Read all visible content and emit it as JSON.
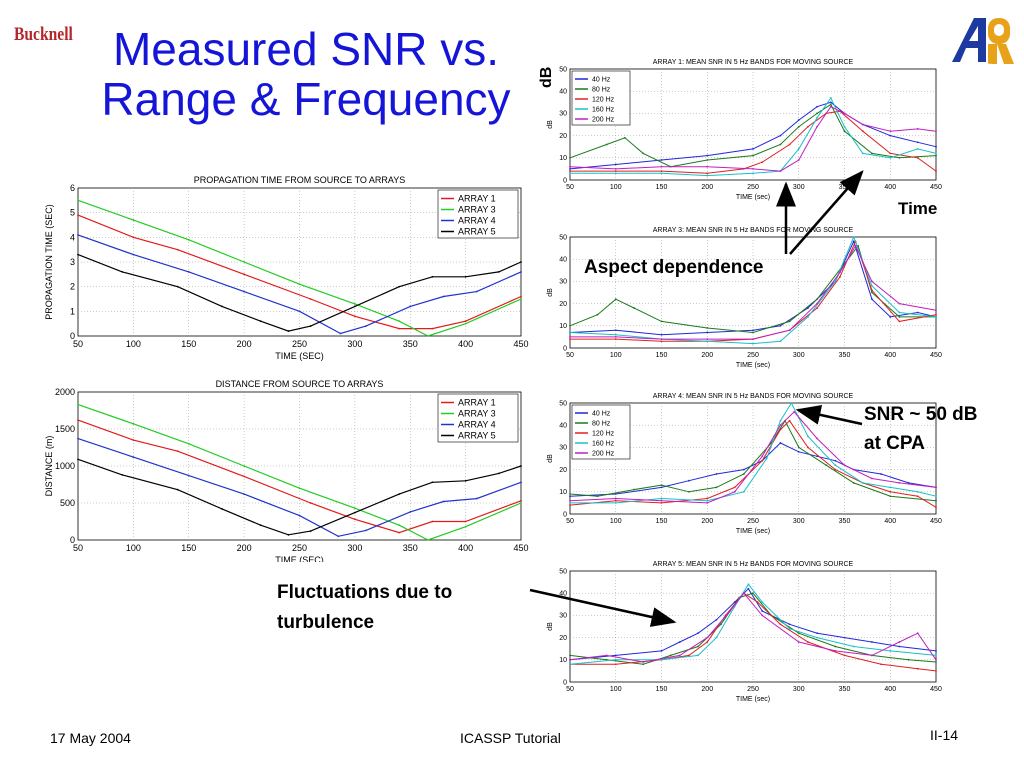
{
  "header": {
    "logo_text": "Bucknell",
    "title_line1": "Measured SNR vs.",
    "title_line2": "Range & Frequency",
    "arl_logo": "ARL"
  },
  "footer": {
    "date": "17 May 2004",
    "center": "ICASSP Tutorial",
    "page": "II-14"
  },
  "annotations": {
    "db": "dB",
    "time": "Time",
    "aspect": "Aspect dependence",
    "snr_line1": "SNR ~ 50 dB",
    "snr_line2": "at CPA",
    "fluct_line1": "Fluctuations due to",
    "fluct_line2": "turbulence"
  },
  "colors": {
    "title": "#1515d8",
    "logo": "#b5262b",
    "array1": "#e31a1c",
    "array3": "#22cc22",
    "array4": "#2233cc",
    "array5": "#000000",
    "f40": "#1f28d8",
    "f80": "#1a7a1a",
    "f120": "#e02020",
    "f160": "#19c0c8",
    "f200": "#c01fc0"
  },
  "chart_data": [
    {
      "type": "line",
      "title": "PROPAGATION TIME FROM SOURCE TO ARRAYS",
      "xlabel": "TIME (SEC)",
      "ylabel": "PROPAGATION TIME (SEC)",
      "xlim": [
        50,
        450
      ],
      "ylim": [
        0,
        6
      ],
      "xticks": [
        50,
        100,
        150,
        200,
        250,
        300,
        350,
        400,
        450
      ],
      "yticks": [
        0,
        1,
        2,
        3,
        4,
        5,
        6
      ],
      "grid": true,
      "legend": "top-right",
      "series": [
        {
          "name": "ARRAY 1",
          "color": "#e31a1c",
          "x": [
            50,
            100,
            140,
            200,
            260,
            300,
            340,
            370,
            400,
            450
          ],
          "y": [
            4.9,
            4.0,
            3.5,
            2.5,
            1.5,
            0.8,
            0.3,
            0.3,
            0.6,
            1.6
          ]
        },
        {
          "name": "ARRAY 3",
          "color": "#22cc22",
          "x": [
            50,
            100,
            150,
            200,
            250,
            300,
            340,
            366,
            400,
            450
          ],
          "y": [
            5.5,
            4.7,
            3.9,
            3.0,
            2.1,
            1.3,
            0.6,
            0.0,
            0.5,
            1.5
          ]
        },
        {
          "name": "ARRAY 4",
          "color": "#2233cc",
          "x": [
            50,
            100,
            150,
            200,
            250,
            287,
            310,
            350,
            380,
            410,
            450
          ],
          "y": [
            4.1,
            3.3,
            2.6,
            1.8,
            1.0,
            0.1,
            0.4,
            1.2,
            1.6,
            1.8,
            2.6
          ]
        },
        {
          "name": "ARRAY 5",
          "color": "#000000",
          "x": [
            50,
            90,
            140,
            180,
            215,
            240,
            260,
            300,
            340,
            370,
            400,
            430,
            450
          ],
          "y": [
            3.3,
            2.6,
            2.0,
            1.2,
            0.6,
            0.2,
            0.4,
            1.2,
            2.0,
            2.4,
            2.4,
            2.6,
            3.0
          ]
        }
      ]
    },
    {
      "type": "line",
      "title": "DISTANCE FROM SOURCE TO ARRAYS",
      "xlabel": "TIME (SEC)",
      "ylabel": "DISTANCE (m)",
      "xlim": [
        50,
        450
      ],
      "ylim": [
        0,
        2000
      ],
      "xticks": [
        50,
        100,
        150,
        200,
        250,
        300,
        350,
        400,
        450
      ],
      "yticks": [
        0,
        500,
        1000,
        1500,
        2000
      ],
      "grid": true,
      "legend": "top-right",
      "series": [
        {
          "name": "ARRAY 1",
          "color": "#e31a1c",
          "x": [
            50,
            100,
            140,
            200,
            260,
            300,
            340,
            370,
            400,
            450
          ],
          "y": [
            1620,
            1350,
            1200,
            860,
            500,
            280,
            100,
            250,
            250,
            530
          ]
        },
        {
          "name": "ARRAY 3",
          "color": "#22cc22",
          "x": [
            50,
            100,
            150,
            200,
            250,
            300,
            340,
            366,
            400,
            450
          ],
          "y": [
            1830,
            1570,
            1300,
            1000,
            700,
            430,
            200,
            0,
            180,
            500
          ]
        },
        {
          "name": "ARRAY 4",
          "color": "#2233cc",
          "x": [
            50,
            100,
            150,
            200,
            250,
            285,
            310,
            350,
            380,
            410,
            450
          ],
          "y": [
            1370,
            1120,
            870,
            620,
            330,
            50,
            130,
            380,
            520,
            560,
            780
          ]
        },
        {
          "name": "ARRAY 5",
          "color": "#000000",
          "x": [
            50,
            90,
            140,
            180,
            215,
            240,
            260,
            300,
            340,
            370,
            400,
            430,
            450
          ],
          "y": [
            1090,
            880,
            680,
            420,
            200,
            70,
            120,
            370,
            620,
            780,
            800,
            900,
            1000
          ]
        }
      ]
    },
    {
      "type": "line",
      "title": "ARRAY 1: MEAN SNR IN 5 Hz BANDS FOR MOVING SOURCE",
      "xlabel": "TIME (sec)",
      "ylabel": "dB",
      "xlim": [
        50,
        450
      ],
      "ylim": [
        0,
        50
      ],
      "xticks": [
        50,
        100,
        150,
        200,
        250,
        300,
        350,
        400,
        450
      ],
      "yticks": [
        0,
        10,
        20,
        30,
        40,
        50
      ],
      "grid": true,
      "legend": "top-left",
      "series": [
        {
          "name": "40 Hz",
          "color": "#1f28d8",
          "x": [
            50,
            100,
            150,
            200,
            250,
            280,
            300,
            320,
            335,
            350,
            370,
            400,
            430,
            450
          ],
          "y": [
            5,
            7,
            9,
            11,
            14,
            20,
            27,
            33,
            35,
            30,
            25,
            20,
            17,
            15
          ]
        },
        {
          "name": "80 Hz",
          "color": "#1a7a1a",
          "x": [
            50,
            90,
            110,
            130,
            160,
            200,
            250,
            280,
            300,
            320,
            335,
            350,
            380,
            410,
            450
          ],
          "y": [
            10,
            16,
            19,
            12,
            6,
            9,
            11,
            16,
            24,
            30,
            34,
            22,
            12,
            10,
            11
          ]
        },
        {
          "name": "120 Hz",
          "color": "#e02020",
          "x": [
            50,
            100,
            150,
            200,
            240,
            260,
            290,
            310,
            330,
            345,
            370,
            400,
            430,
            450
          ],
          "y": [
            4,
            4,
            4,
            3,
            5,
            8,
            16,
            24,
            30,
            31,
            22,
            12,
            10,
            4
          ]
        },
        {
          "name": "160 Hz",
          "color": "#19c0c8",
          "x": [
            50,
            100,
            150,
            200,
            250,
            280,
            300,
            320,
            335,
            350,
            370,
            400,
            430,
            450
          ],
          "y": [
            3,
            3,
            3,
            2,
            3,
            4,
            14,
            28,
            37,
            24,
            12,
            10,
            14,
            12
          ]
        },
        {
          "name": "200 Hz",
          "color": "#c01fc0",
          "x": [
            50,
            100,
            150,
            200,
            250,
            280,
            300,
            320,
            335,
            350,
            370,
            400,
            430,
            450
          ],
          "y": [
            6,
            5,
            6,
            6,
            5,
            4,
            9,
            24,
            33,
            30,
            25,
            22,
            23,
            22
          ]
        }
      ]
    },
    {
      "type": "line",
      "title": "ARRAY 3: MEAN SNR IN 5 Hz BANDS FOR MOVING SOURCE",
      "xlabel": "TIME (sec)",
      "ylabel": "dB",
      "xlim": [
        50,
        450
      ],
      "ylim": [
        0,
        50
      ],
      "xticks": [
        50,
        100,
        150,
        200,
        250,
        300,
        350,
        400,
        450
      ],
      "yticks": [
        0,
        10,
        20,
        30,
        40,
        50
      ],
      "grid": true,
      "legend": "none",
      "series": [
        {
          "name": "40 Hz",
          "color": "#1f28d8",
          "x": [
            50,
            100,
            150,
            200,
            250,
            280,
            310,
            340,
            360,
            380,
            400,
            430,
            450
          ],
          "y": [
            7,
            8,
            6,
            7,
            8,
            10,
            18,
            30,
            48,
            22,
            14,
            16,
            14
          ]
        },
        {
          "name": "80 Hz",
          "color": "#1a7a1a",
          "x": [
            50,
            80,
            100,
            120,
            150,
            200,
            250,
            290,
            320,
            350,
            365,
            380,
            410,
            450
          ],
          "y": [
            10,
            15,
            22,
            18,
            12,
            9,
            7,
            12,
            22,
            38,
            46,
            25,
            14,
            14
          ]
        },
        {
          "name": "120 Hz",
          "color": "#e02020",
          "x": [
            50,
            100,
            150,
            200,
            250,
            290,
            320,
            345,
            362,
            380,
            410,
            450
          ],
          "y": [
            4,
            4,
            3,
            3,
            4,
            8,
            18,
            32,
            48,
            26,
            12,
            15
          ]
        },
        {
          "name": "160 Hz",
          "color": "#19c0c8",
          "x": [
            50,
            100,
            150,
            200,
            250,
            280,
            310,
            340,
            360,
            380,
            410,
            450
          ],
          "y": [
            7,
            6,
            4,
            3,
            2,
            3,
            14,
            30,
            50,
            28,
            16,
            14
          ]
        },
        {
          "name": "200 Hz",
          "color": "#c01fc0",
          "x": [
            50,
            100,
            150,
            200,
            250,
            290,
            320,
            345,
            362,
            380,
            410,
            450
          ],
          "y": [
            5,
            5,
            4,
            4,
            4,
            8,
            20,
            34,
            46,
            30,
            20,
            17
          ]
        }
      ]
    },
    {
      "type": "line",
      "title": "ARRAY 4: MEAN SNR IN 5 Hz BANDS FOR MOVING SOURCE",
      "xlabel": "TIME (sec)",
      "ylabel": "dB",
      "xlim": [
        50,
        450
      ],
      "ylim": [
        0,
        50
      ],
      "xticks": [
        50,
        100,
        150,
        200,
        250,
        300,
        350,
        400,
        450
      ],
      "yticks": [
        0,
        10,
        20,
        30,
        40,
        50
      ],
      "grid": true,
      "legend": "top-left",
      "series": [
        {
          "name": "40 Hz",
          "color": "#1f28d8",
          "x": [
            50,
            100,
            150,
            180,
            210,
            240,
            260,
            280,
            300,
            320,
            340,
            360,
            390,
            420,
            450
          ],
          "y": [
            8,
            9,
            12,
            15,
            18,
            20,
            24,
            32,
            28,
            26,
            24,
            20,
            18,
            14,
            12
          ]
        },
        {
          "name": "80 Hz",
          "color": "#1a7a1a",
          "x": [
            50,
            80,
            120,
            150,
            180,
            210,
            240,
            270,
            285,
            300,
            330,
            360,
            400,
            450
          ],
          "y": [
            9,
            8,
            11,
            13,
            10,
            12,
            18,
            32,
            42,
            30,
            22,
            14,
            8,
            6
          ]
        },
        {
          "name": "120 Hz",
          "color": "#e02020",
          "x": [
            50,
            100,
            150,
            200,
            230,
            260,
            280,
            290,
            310,
            340,
            370,
            400,
            430,
            450
          ],
          "y": [
            4,
            6,
            5,
            7,
            12,
            24,
            38,
            42,
            30,
            20,
            14,
            10,
            8,
            3
          ]
        },
        {
          "name": "160 Hz",
          "color": "#19c0c8",
          "x": [
            50,
            100,
            150,
            200,
            240,
            265,
            280,
            292,
            310,
            340,
            370,
            400,
            430,
            450
          ],
          "y": [
            5,
            5,
            7,
            6,
            10,
            25,
            42,
            50,
            35,
            22,
            14,
            12,
            10,
            8
          ]
        },
        {
          "name": "200 Hz",
          "color": "#c01fc0",
          "x": [
            50,
            100,
            150,
            200,
            230,
            260,
            280,
            295,
            320,
            350,
            380,
            410,
            450
          ],
          "y": [
            6,
            7,
            6,
            5,
            10,
            26,
            40,
            46,
            34,
            22,
            16,
            14,
            12
          ]
        }
      ]
    },
    {
      "type": "line",
      "title": "ARRAY 5: MEAN SNR IN 5 Hz BANDS FOR MOVING SOURCE",
      "xlabel": "TIME (sec)",
      "ylabel": "dB",
      "xlim": [
        50,
        450
      ],
      "ylim": [
        0,
        50
      ],
      "xticks": [
        50,
        100,
        150,
        200,
        250,
        300,
        350,
        400,
        450
      ],
      "yticks": [
        0,
        10,
        20,
        30,
        40,
        50
      ],
      "grid": true,
      "legend": "none",
      "series": [
        {
          "name": "40 Hz",
          "color": "#1f28d8",
          "x": [
            50,
            100,
            150,
            170,
            190,
            210,
            230,
            245,
            260,
            290,
            320,
            350,
            380,
            410,
            450
          ],
          "y": [
            10,
            12,
            14,
            18,
            22,
            28,
            36,
            42,
            32,
            26,
            22,
            20,
            18,
            16,
            14
          ]
        },
        {
          "name": "80 Hz",
          "color": "#1a7a1a",
          "x": [
            50,
            90,
            130,
            160,
            190,
            215,
            235,
            250,
            270,
            300,
            340,
            380,
            420,
            450
          ],
          "y": [
            12,
            10,
            8,
            12,
            16,
            26,
            38,
            40,
            30,
            22,
            16,
            12,
            10,
            9
          ]
        },
        {
          "name": "120 Hz",
          "color": "#e02020",
          "x": [
            50,
            100,
            150,
            180,
            200,
            220,
            240,
            255,
            280,
            310,
            350,
            390,
            430,
            450
          ],
          "y": [
            8,
            8,
            10,
            12,
            18,
            30,
            40,
            36,
            26,
            18,
            12,
            8,
            6,
            5
          ]
        },
        {
          "name": "160 Hz",
          "color": "#19c0c8",
          "x": [
            50,
            100,
            150,
            190,
            210,
            230,
            245,
            260,
            290,
            320,
            360,
            400,
            450
          ],
          "y": [
            8,
            10,
            10,
            12,
            20,
            34,
            44,
            36,
            24,
            20,
            16,
            14,
            12
          ]
        },
        {
          "name": "200 Hz",
          "color": "#c01fc0",
          "x": [
            50,
            90,
            130,
            170,
            200,
            225,
            240,
            260,
            300,
            340,
            380,
            410,
            430,
            450
          ],
          "y": [
            10,
            12,
            9,
            12,
            20,
            32,
            40,
            30,
            18,
            14,
            12,
            18,
            22,
            10
          ]
        }
      ]
    }
  ]
}
